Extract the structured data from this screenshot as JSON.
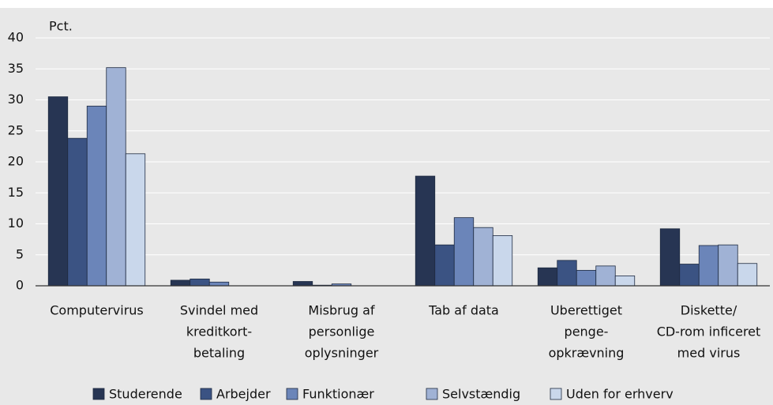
{
  "chart_data": {
    "type": "bar",
    "y_label": "Pct.",
    "categories": [
      [
        "Computervirus"
      ],
      [
        "Svindel med",
        "kreditkort-",
        "betaling"
      ],
      [
        "Misbrug af",
        "personlige",
        "oplysninger"
      ],
      [
        "Tab af data"
      ],
      [
        "Uberettiget",
        "penge-",
        "opkrævning"
      ],
      [
        "Diskette/",
        "CD-rom inficeret",
        "med virus"
      ]
    ],
    "series": [
      {
        "name": "Studerende",
        "color": "#273553",
        "values": [
          30.5,
          0.9,
          0.7,
          17.7,
          2.9,
          9.2
        ]
      },
      {
        "name": "Arbejder",
        "color": "#3b5383",
        "values": [
          23.8,
          1.1,
          0.1,
          6.6,
          4.1,
          3.5
        ]
      },
      {
        "name": "Funktionær",
        "color": "#6b85b9",
        "values": [
          29,
          0.6,
          0.3,
          11,
          2.5,
          6.5
        ]
      },
      {
        "name": "Selvstændig",
        "color": "#a0b2d5",
        "values": [
          35.2,
          0,
          0,
          9.4,
          3.2,
          6.6
        ]
      },
      {
        "name": "Uden for erhverv",
        "color": "#c9d7eb",
        "values": [
          21.3,
          0,
          0,
          8.1,
          1.6,
          3.6
        ]
      }
    ],
    "ylim": [
      0,
      40
    ],
    "yticks": [
      0,
      5,
      10,
      15,
      20,
      25,
      30,
      35,
      40
    ],
    "grid": true
  }
}
